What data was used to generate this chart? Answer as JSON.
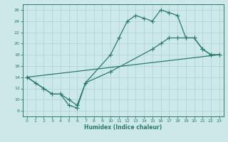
{
  "xlabel": "Humidex (Indice chaleur)",
  "ylabel": "",
  "xlim": [
    -0.5,
    23.5
  ],
  "ylim": [
    7,
    27
  ],
  "xticks": [
    0,
    1,
    2,
    3,
    4,
    5,
    6,
    7,
    8,
    9,
    10,
    11,
    12,
    13,
    14,
    15,
    16,
    17,
    18,
    19,
    20,
    21,
    22,
    23
  ],
  "yticks": [
    8,
    10,
    12,
    14,
    16,
    18,
    20,
    22,
    24,
    26
  ],
  "bg_color": "#cce8e8",
  "grid_color": "#b0d4d4",
  "line_color": "#2a7a6a",
  "line1_x": [
    0,
    1,
    2,
    3,
    4,
    5,
    6,
    7,
    10,
    11,
    12,
    13,
    14,
    15,
    16,
    17,
    18,
    19,
    20,
    21,
    22,
    23
  ],
  "line1_y": [
    14,
    13,
    12,
    11,
    11,
    9,
    8.5,
    13,
    18,
    21,
    24,
    25,
    24.5,
    24,
    26,
    25.5,
    25,
    21,
    21,
    19,
    18,
    18
  ],
  "line2_x": [
    0,
    2,
    3,
    4,
    5,
    6,
    7,
    10,
    15,
    16,
    17,
    18,
    19,
    20,
    21,
    22,
    23
  ],
  "line2_y": [
    14,
    12,
    11,
    11,
    10,
    9,
    13,
    15,
    19,
    20,
    21,
    21,
    21,
    21,
    19,
    18,
    18
  ],
  "line3_x": [
    0,
    23
  ],
  "line3_y": [
    14,
    18
  ],
  "marker_size": 2.5,
  "linewidth": 0.9
}
